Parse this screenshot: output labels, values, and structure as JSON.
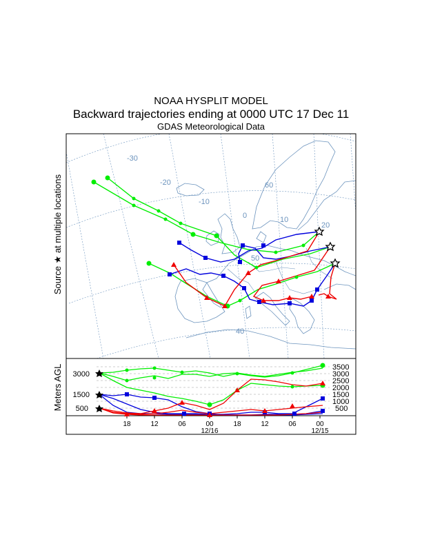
{
  "title": "NOAA HYSPLIT MODEL",
  "subtitle": "Backward trajectories ending at 0000 UTC 17 Dec 11",
  "meteo": "GDAS Meteorological Data",
  "side_label": "Source ★ at multiple locations",
  "map": {
    "lon_labels": [
      "-30",
      "-20",
      "-10",
      "0",
      "10",
      "20"
    ],
    "lat_labels": [
      "60",
      "50",
      "40"
    ]
  },
  "height_panel": {
    "ylabel": "Meters AGL",
    "left_ticks": [
      "3000",
      "1500",
      "500"
    ],
    "right_ticks": [
      "3500",
      "3000",
      "2500",
      "2000",
      "1500",
      "1000",
      "500"
    ],
    "time_ticks": [
      "18",
      "12",
      "06",
      "00",
      "18",
      "12",
      "06",
      "00"
    ],
    "date_labels": [
      "12/16",
      "12/15"
    ]
  },
  "colors": {
    "green": "#00ee00",
    "blue": "#0000dd",
    "red": "#ee0000",
    "coast": "#6b93bd",
    "grid": "#6b93bd"
  }
}
